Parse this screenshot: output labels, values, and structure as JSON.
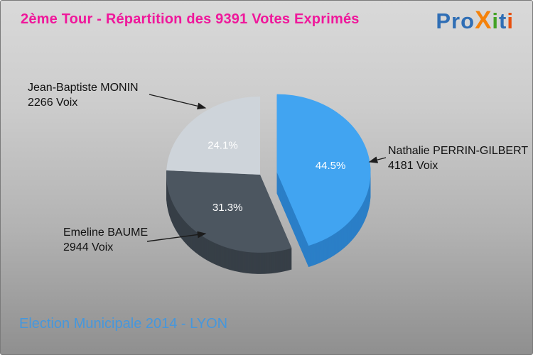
{
  "header": {
    "title": "2ème Tour - Répartition des 9391 Votes Exprimés",
    "title_color": "#ef189b",
    "logo_text": "Proxiti",
    "logo_letters": [
      {
        "ch": "P",
        "color": "#2f6eb5"
      },
      {
        "ch": "r",
        "color": "#2f6eb5"
      },
      {
        "ch": "o",
        "color": "#2f6eb5"
      },
      {
        "ch": "X",
        "color": "#f5820a"
      },
      {
        "ch": "i",
        "color": "#43a224"
      },
      {
        "ch": "t",
        "color": "#2f6eb5"
      },
      {
        "ch": "i",
        "color": "#e8500e"
      }
    ]
  },
  "chart_data": {
    "type": "pie",
    "title": "2ème Tour - Répartition des 9391 Votes Exprimés",
    "total_votes": 9391,
    "total_label": "9391 Votes Exprimés",
    "unit": "Voix",
    "start_angle_deg": -90,
    "direction": "clockwise",
    "style": "3d-exploded",
    "slices": [
      {
        "label": "Nathalie PERRIN-GILBERT",
        "votes": 4181,
        "votes_label": "4181 Voix",
        "percent": 44.5,
        "percent_label": "44.5%",
        "color": "#41a4f1",
        "side_color": "#2b7fc7",
        "exploded": true
      },
      {
        "label": "Emeline BAUME",
        "votes": 2944,
        "votes_label": "2944 Voix",
        "percent": 31.3,
        "percent_label": "31.3%",
        "color": "#4c5660",
        "side_color": "#373f47",
        "exploded": false
      },
      {
        "label": "Jean-Baptiste MONIN",
        "votes": 2266,
        "votes_label": "2266 Voix",
        "percent": 24.1,
        "percent_label": "24.1%",
        "color": "#ced4da",
        "side_color": "#9aa2ab",
        "exploded": false
      }
    ]
  },
  "footer": {
    "text": "Election Municipale 2014 - LYON",
    "color": "#4697dc"
  }
}
